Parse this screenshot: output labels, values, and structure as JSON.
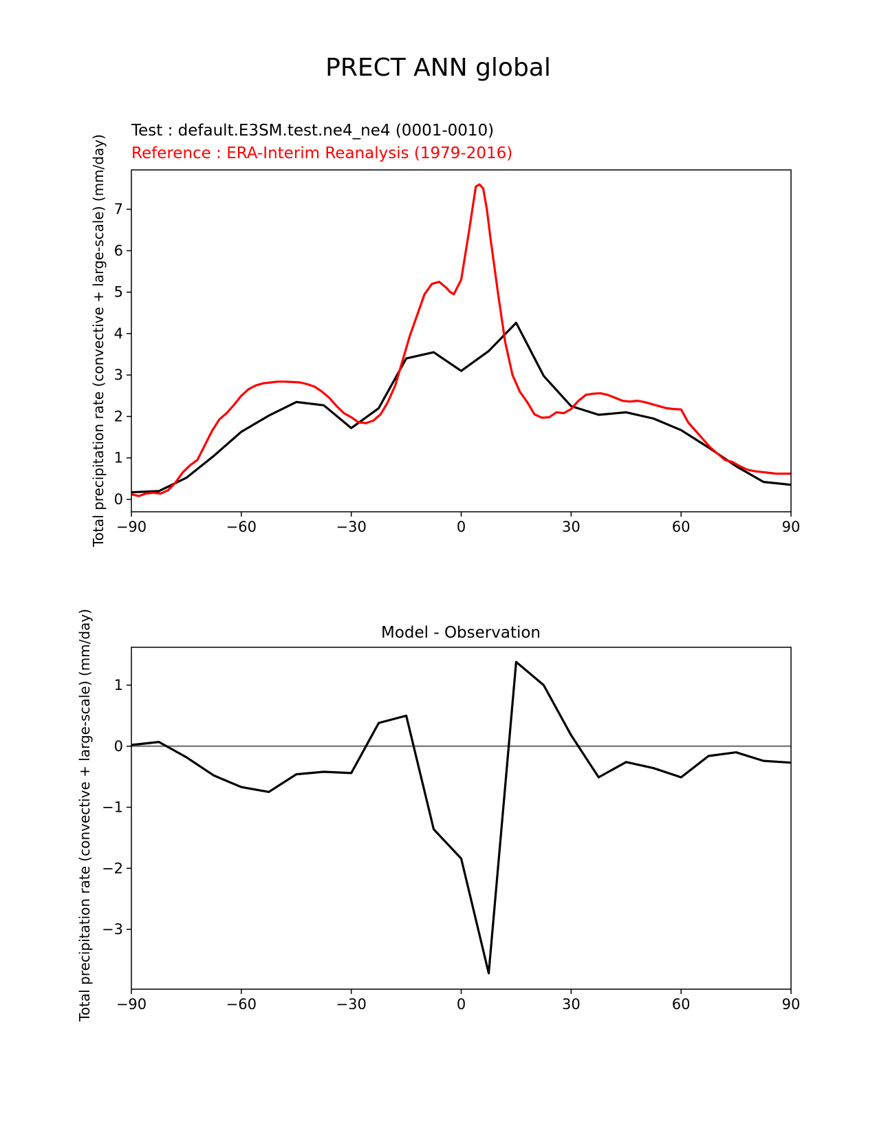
{
  "figure": {
    "title": "PRECT ANN global"
  },
  "colors": {
    "test": "#000000",
    "reference": "#ff0000",
    "zero_line": "#808080",
    "axes": "#000000"
  },
  "chart_data": [
    {
      "type": "line",
      "subtitle_test": "Test : default.E3SM.test.ne4_ne4 (0001-0010)",
      "subtitle_reference": "Reference : ERA-Interim Reanalysis (1979-2016)",
      "xlabel": "",
      "ylabel": "Total precipitation rate (convective + large-scale) (mm/day)",
      "xlim": [
        -90,
        90
      ],
      "ylim": [
        -0.3,
        7.95
      ],
      "xticks": [
        -90,
        -60,
        -30,
        0,
        30,
        60,
        90
      ],
      "xtick_labels": [
        "−90",
        "−60",
        "−30",
        "0",
        "30",
        "60",
        "90"
      ],
      "yticks": [
        0,
        1,
        2,
        3,
        4,
        5,
        6,
        7
      ],
      "ytick_labels": [
        "0",
        "1",
        "2",
        "3",
        "4",
        "5",
        "6",
        "7"
      ],
      "series": [
        {
          "name": "Test : default.E3SM.test.ne4_ne4 (0001-0010)",
          "color": "#000000",
          "x": [
            -90,
            -82.5,
            -75,
            -67.5,
            -60,
            -52.5,
            -45,
            -37.5,
            -30,
            -22.5,
            -15,
            -7.5,
            0,
            7.5,
            15,
            22.5,
            30,
            37.5,
            45,
            52.5,
            60,
            67.5,
            75,
            82.5,
            90
          ],
          "y": [
            0.17,
            0.2,
            0.52,
            1.05,
            1.63,
            2.02,
            2.35,
            2.27,
            1.72,
            2.2,
            3.4,
            3.55,
            3.1,
            3.58,
            4.26,
            2.98,
            2.25,
            2.04,
            2.1,
            1.95,
            1.67,
            1.25,
            0.8,
            0.42,
            0.35
          ]
        },
        {
          "name": "Reference : ERA-Interim Reanalysis (1979-2016)",
          "color": "#ff0000",
          "x": [
            -90,
            -88,
            -86,
            -84,
            -82,
            -80,
            -78,
            -76,
            -74,
            -72,
            -70,
            -68,
            -66,
            -64,
            -62,
            -60,
            -58,
            -56,
            -54,
            -52,
            -50,
            -48,
            -46,
            -44,
            -42,
            -40,
            -38,
            -36,
            -34,
            -32,
            -30,
            -28,
            -26,
            -24,
            -22,
            -20,
            -18,
            -16,
            -14,
            -12,
            -10,
            -8,
            -6,
            -4,
            -3,
            -2,
            0,
            2,
            4,
            5,
            6,
            7,
            8,
            10,
            12,
            14,
            16,
            18,
            20,
            22,
            24,
            26,
            28,
            30,
            32,
            34,
            36,
            38,
            40,
            42,
            44,
            46,
            48,
            50,
            52,
            54,
            56,
            58,
            60,
            62,
            64,
            66,
            68,
            70,
            72,
            74,
            76,
            78,
            80,
            82,
            84,
            86,
            88,
            90
          ],
          "y": [
            0.12,
            0.08,
            0.14,
            0.16,
            0.14,
            0.22,
            0.4,
            0.65,
            0.82,
            0.95,
            1.3,
            1.65,
            1.93,
            2.08,
            2.28,
            2.5,
            2.66,
            2.75,
            2.8,
            2.82,
            2.84,
            2.84,
            2.83,
            2.82,
            2.78,
            2.72,
            2.6,
            2.45,
            2.25,
            2.08,
            1.98,
            1.86,
            1.84,
            1.9,
            2.05,
            2.35,
            2.75,
            3.35,
            3.95,
            4.45,
            4.95,
            5.2,
            5.25,
            5.1,
            5.0,
            4.95,
            5.3,
            6.4,
            7.55,
            7.6,
            7.5,
            7.0,
            6.3,
            5.0,
            3.8,
            3.0,
            2.6,
            2.35,
            2.05,
            1.97,
            1.98,
            2.1,
            2.08,
            2.18,
            2.38,
            2.52,
            2.55,
            2.56,
            2.52,
            2.45,
            2.38,
            2.36,
            2.38,
            2.35,
            2.3,
            2.25,
            2.2,
            2.18,
            2.17,
            1.85,
            1.65,
            1.45,
            1.25,
            1.1,
            0.95,
            0.9,
            0.8,
            0.72,
            0.68,
            0.66,
            0.64,
            0.62,
            0.62,
            0.62
          ]
        }
      ]
    },
    {
      "type": "line",
      "title": "Model - Observation",
      "xlabel": "",
      "ylabel": "Total precipitation rate (convective + large-scale) (mm/day)",
      "xlim": [
        -90,
        90
      ],
      "ylim": [
        -3.98,
        1.62
      ],
      "xticks": [
        -90,
        -60,
        -30,
        0,
        30,
        60,
        90
      ],
      "xtick_labels": [
        "−90",
        "−60",
        "−30",
        "0",
        "30",
        "60",
        "90"
      ],
      "yticks": [
        -3,
        -2,
        -1,
        0,
        1
      ],
      "ytick_labels": [
        "−3",
        "−2",
        "−1",
        "0",
        "1"
      ],
      "zero_line": 0,
      "series": [
        {
          "name": "Model - Observation",
          "color": "#000000",
          "x": [
            -90,
            -82.5,
            -75,
            -67.5,
            -60,
            -52.5,
            -45,
            -37.5,
            -30,
            -22.5,
            -15,
            -7.5,
            0,
            7.5,
            15,
            22.5,
            30,
            37.5,
            45,
            52.5,
            60,
            67.5,
            75,
            82.5,
            90
          ],
          "y": [
            0.02,
            0.07,
            -0.18,
            -0.48,
            -0.67,
            -0.75,
            -0.46,
            -0.42,
            -0.44,
            0.38,
            0.5,
            -1.36,
            -1.84,
            -3.72,
            1.38,
            1.0,
            0.18,
            -0.51,
            -0.26,
            -0.36,
            -0.51,
            -0.16,
            -0.1,
            -0.24,
            -0.27
          ]
        }
      ]
    }
  ]
}
